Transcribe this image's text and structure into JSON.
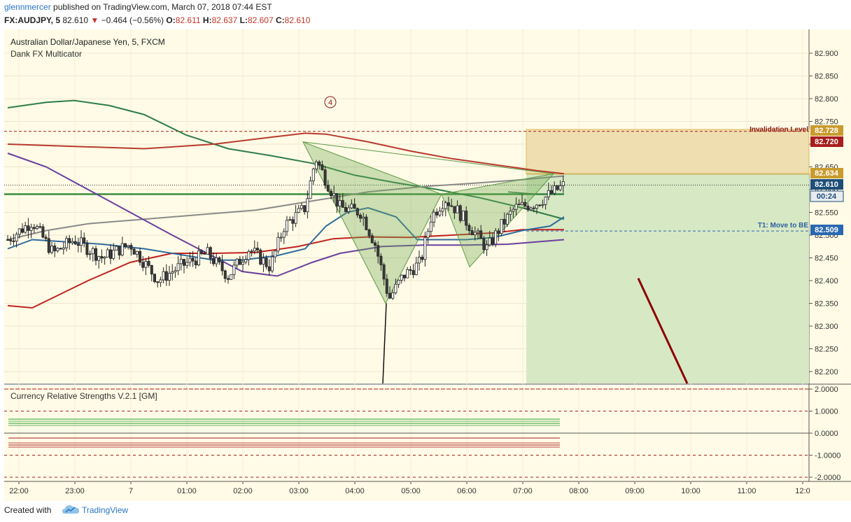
{
  "header": {
    "username": "glennmercer",
    "published_text": "published on TradingView.com, March 07, 2018 07:44 EST",
    "symbol": "FX:AUDJPY, 5",
    "last": "82.610",
    "change": "−0.464 (−0.56%)",
    "o_label": "O:",
    "o_val": "82.611",
    "h_label": "H:",
    "h_val": "82.637",
    "l_label": "L:",
    "l_val": "82.607",
    "c_label": "C:",
    "c_val": "82.610"
  },
  "legend": {
    "title": "Australian Dollar/Japanese Yen, 5, FXCM",
    "indicator": "Dank FX Multicator"
  },
  "pattern_marker": "4",
  "annotations": {
    "invalidation": "Invalidation Level",
    "t1": "T1:  Move to BE"
  },
  "price_tags": {
    "p1": "82.728",
    "p2": "82.720",
    "p3": "82.634",
    "p4": "82.610",
    "timer": "00:24",
    "p5": "82.509"
  },
  "subpane": {
    "title": "Currency Relative Strengths V.2.1 [GM]"
  },
  "colors": {
    "background": "#fffbe6",
    "grid": "#eae6cc",
    "up_candle": "#ffffff",
    "down_candle": "#3b3b3b",
    "green_zone": "#d7e8c4",
    "orange_zone": "#efdfb0",
    "accent_blue": "#2a74c4"
  },
  "footer": {
    "created_with": "Created with",
    "brand": "TradingView"
  },
  "chart_data": {
    "type": "candlestick",
    "title": "Australian Dollar/Japanese Yen, 5, FXCM",
    "xlabel": "",
    "ylabel": "",
    "x_ticks": [
      "22:00",
      "23:00",
      "7",
      "01:00",
      "02:00",
      "03:00",
      "04:00",
      "05:00",
      "06:00",
      "07:00",
      "08:00",
      "09:00",
      "10:00",
      "11:00",
      "12:0"
    ],
    "y_ticks": [
      "82.900",
      "82.850",
      "82.800",
      "82.750",
      "82.700",
      "82.650",
      "82.600",
      "82.550",
      "82.500",
      "82.450",
      "82.400",
      "82.350",
      "82.300",
      "82.250",
      "82.200"
    ],
    "ylim": [
      82.17,
      82.935
    ],
    "levels": {
      "invalidation": 82.728,
      "red": 82.72,
      "entry": 82.634,
      "last": 82.61,
      "target": 82.509
    },
    "sub_y_ticks": [
      "2.0000",
      "1.0000",
      "0.0000",
      "-1.0000",
      "-2.0000"
    ],
    "grid": true
  }
}
